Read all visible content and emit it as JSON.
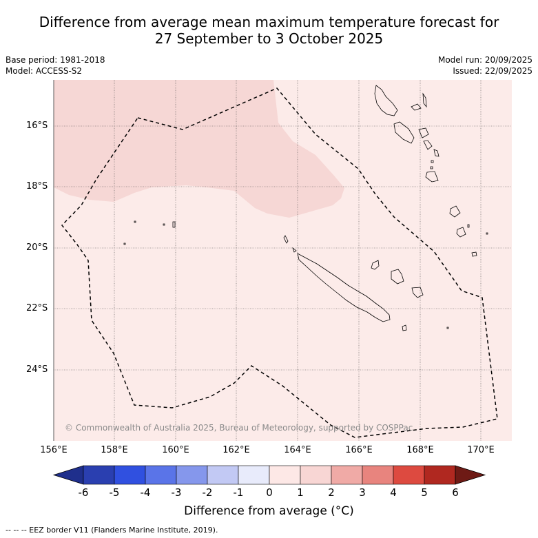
{
  "title_line1": "Difference from average mean maximum temperature forecast for",
  "title_line2": "27 September to 3 October 2025",
  "base_period": "Base period: 1981-2018",
  "model": "Model: ACCESS-S2",
  "model_run": "Model run: 20/09/2025",
  "issued": "Issued: 22/09/2025",
  "lat_labels": [
    "16°S",
    "18°S",
    "20°S",
    "22°S",
    "24°S"
  ],
  "lon_labels": [
    "156°E",
    "158°E",
    "160°E",
    "162°E",
    "164°E",
    "166°E",
    "168°E",
    "170°E"
  ],
  "copyright": "© Commonwealth of Australia 2025, Bureau of Meteorology, supported by COSPPac",
  "colorbar": {
    "ticks": [
      "-6",
      "-5",
      "-4",
      "-3",
      "-2",
      "-1",
      "0",
      "1",
      "2",
      "3",
      "4",
      "5",
      "6"
    ],
    "colors": [
      "#1f2f8c",
      "#2a3fb0",
      "#3050e0",
      "#5a74e8",
      "#8597ec",
      "#c2c9f4",
      "#e8ebfb",
      "#fde8e6",
      "#f8d6d4",
      "#f0aaa6",
      "#e8847e",
      "#dd4a40",
      "#b02820",
      "#6e1a15"
    ],
    "title": "Difference from average (°C)"
  },
  "legend_eez": "--  --  -- EEZ border V11 (Flanders Marine Institute, 2019).",
  "colors": {
    "background_anomaly": "#fcebe9",
    "anomaly_1_2": "#f6d7d5",
    "grid": "#555555"
  }
}
